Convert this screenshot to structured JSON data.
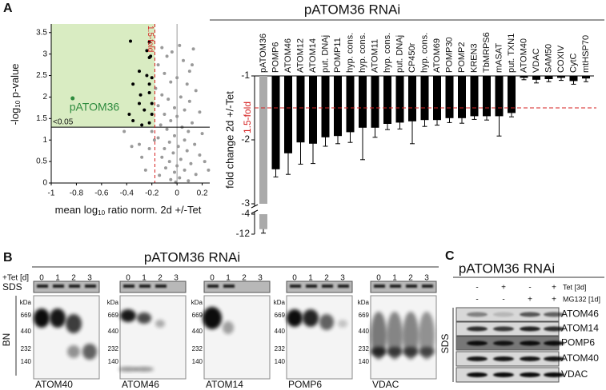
{
  "panel_a": {
    "label": "A",
    "title": "pATOM36 RNAi"
  },
  "chart_data": [
    {
      "type": "scatter",
      "xlabel": {
        "pre": "mean log",
        "sub": "10",
        "post": " ratio norm. 2d +/-Tet"
      },
      "ylabel": {
        "pre": "-log",
        "sub": "10",
        "post": " p-value"
      },
      "xlim": [
        -1,
        0.26
      ],
      "ylim": [
        0,
        3.7
      ],
      "xticks": [
        -1,
        -0.8,
        -0.6,
        -0.4,
        -0.2,
        0,
        0.2
      ],
      "yticks": [
        0,
        0.5,
        1,
        1.5,
        2,
        2.5,
        3,
        3.5
      ],
      "hline": 1.3,
      "hline_label": "<0.05",
      "vline": -0.176,
      "vline_label": "1.5-fold",
      "region_color": "#d9ecc2",
      "series": [
        {
          "color": "#9a9a9a",
          "x": [
            -0.12,
            0.02,
            0.13,
            -0.08,
            0.05,
            -0.15,
            0.1,
            -0.1,
            0,
            -0.05,
            0.08,
            -0.17,
            0.15,
            -0.12,
            0.03,
            -0.07,
            0.1,
            -0.15,
            -0.02,
            0.06,
            0.18,
            -0.1,
            0,
            -0.05,
            0.12,
            -0.13,
            0.04,
            -0.08,
            0.09,
            0.2,
            -0.02,
            -0.15,
            0.06,
            -0.06,
            0.14,
            0.01,
            -0.1,
            0.08,
            -0.03,
            0.18,
            -0.12,
            0.03,
            -0.06,
            0.11,
            0,
            -0.09,
            0.06,
            -0.02,
            0.15,
            -0.14,
            0.02,
            -0.05,
            0.09,
            -0.01,
            -0.42,
            -0.3,
            -0.28,
            -0.25,
            -0.22,
            -0.18,
            -0.36,
            0.22,
            0.25,
            -0.2,
            0.12,
            -0.04
          ],
          "y": [
            3.15,
            3.2,
            3.12,
            2.95,
            2.85,
            2.75,
            2.6,
            2.55,
            2.45,
            2.35,
            2.3,
            2.2,
            2.15,
            2.05,
            2,
            1.95,
            1.9,
            1.8,
            1.75,
            1.7,
            1.65,
            1.6,
            1.55,
            1.45,
            1.4,
            1.35,
            1.3,
            1.25,
            1.2,
            1.15,
            1.1,
            1.05,
            1,
            0.95,
            0.9,
            0.85,
            0.8,
            0.75,
            0.7,
            0.65,
            0.6,
            0.55,
            0.5,
            0.45,
            0.4,
            0.35,
            0.3,
            0.25,
            0.2,
            0.18,
            0.12,
            0.08,
            0.05,
            0.02,
            1.2,
            0.9,
            0.6,
            0.3,
            0.8,
            1,
            0.85,
            0.5,
            0.3,
            1.2,
            2.75,
            3.05
          ]
        },
        {
          "color": "#000000",
          "x": [
            -0.37,
            -0.22,
            -0.24,
            -0.22,
            -0.21,
            -0.3,
            -0.24,
            -0.2,
            -0.35,
            -0.22,
            -0.29,
            -0.22,
            -0.3,
            -0.26,
            -0.38,
            -0.2,
            -0.35,
            -0.28,
            -0.22,
            -0.2
          ],
          "y": [
            3.3,
            3.28,
            3.08,
            2.92,
            2.95,
            2.6,
            2.5,
            2.45,
            2.3,
            2.3,
            2.05,
            2.1,
            1.85,
            1.7,
            1.6,
            1.6,
            1.45,
            1.35,
            1.4,
            1.85
          ]
        },
        {
          "name": "pATOM36",
          "color": "#2e8b3e",
          "x": [
            -0.83
          ],
          "y": [
            1.97
          ]
        }
      ]
    },
    {
      "type": "bar",
      "ylabel": "fold change 2d +/-Tet",
      "categories": [
        "pATOM36",
        "POMP6",
        "ATOM46",
        "ATOM12",
        "ATOM14",
        "put. DNAj",
        "POMP11",
        "hyp. cons.",
        "hyp. cons.",
        "ATOM11",
        "hyp. cons.",
        "put. DNAj",
        "CP450r",
        "hyp. cons.",
        "ATOM69",
        "POMP30",
        "POMP2",
        "KREN3",
        "TbMRPS6",
        "mASAT",
        "put. TXN1",
        "ATOM40",
        "VDAC",
        "SAM50",
        "COXIV",
        "CytC",
        "mtHSP70"
      ],
      "values": [
        -10,
        -2.46,
        -2.21,
        -2.04,
        -2.06,
        -1.96,
        -1.94,
        -1.88,
        -1.81,
        -1.81,
        -1.75,
        -1.73,
        -1.71,
        -1.69,
        -1.69,
        -1.66,
        -1.66,
        -1.63,
        -1.63,
        -1.63,
        -1.58,
        -1.03,
        -1.06,
        -1.05,
        -1.03,
        -1.08,
        -1.04
      ],
      "errors": [
        1.6,
        0.12,
        0.33,
        0.34,
        0.31,
        0.14,
        0.12,
        0.16,
        0.5,
        0.15,
        0.09,
        0.1,
        0.35,
        0.1,
        0.08,
        0.07,
        0.08,
        0.05,
        0.06,
        0.31,
        0.06,
        0.03,
        0.05,
        0.04,
        0.04,
        0.05,
        0.05
      ],
      "colors": [
        "#aaaaaa",
        "#000000",
        "#000000",
        "#000000",
        "#000000",
        "#000000",
        "#000000",
        "#000000",
        "#000000",
        "#000000",
        "#000000",
        "#000000",
        "#000000",
        "#000000",
        "#000000",
        "#000000",
        "#000000",
        "#000000",
        "#000000",
        "#000000",
        "#000000",
        "#000000",
        "#000000",
        "#000000",
        "#000000",
        "#000000",
        "#000000"
      ],
      "ylim": [
        -1,
        -12
      ],
      "ybreak": [
        -3,
        -4
      ],
      "yticks": [
        -1,
        -2,
        -3,
        -4,
        -12
      ],
      "threshold": -1.5,
      "threshold_label": "1.5-fold"
    }
  ],
  "panel_b": {
    "label": "B",
    "title": "pATOM36 RNAi",
    "tet_label": "+Tet [d]",
    "days": [
      "0",
      "1",
      "2",
      "3"
    ],
    "sds": "SDS",
    "bn": "BN",
    "kda": "kDa",
    "markers": [
      "669",
      "440",
      "232",
      "140"
    ],
    "blots": [
      "ATOM40",
      "ATOM46",
      "ATOM14",
      "POMP6",
      "VDAC"
    ]
  },
  "panel_c": {
    "label": "C",
    "title": "pATOM36 RNAi",
    "rows": [
      {
        "label": "Tet [3d]",
        "signs": [
          "-",
          "+",
          "-",
          "+"
        ]
      },
      {
        "label": "MG132 [1d]",
        "signs": [
          "-",
          "-",
          "+",
          "+"
        ]
      }
    ],
    "sds": "SDS",
    "bands": [
      "ATOM46",
      "ATOM14",
      "POMP6",
      "ATOM40",
      "VDAC"
    ]
  }
}
